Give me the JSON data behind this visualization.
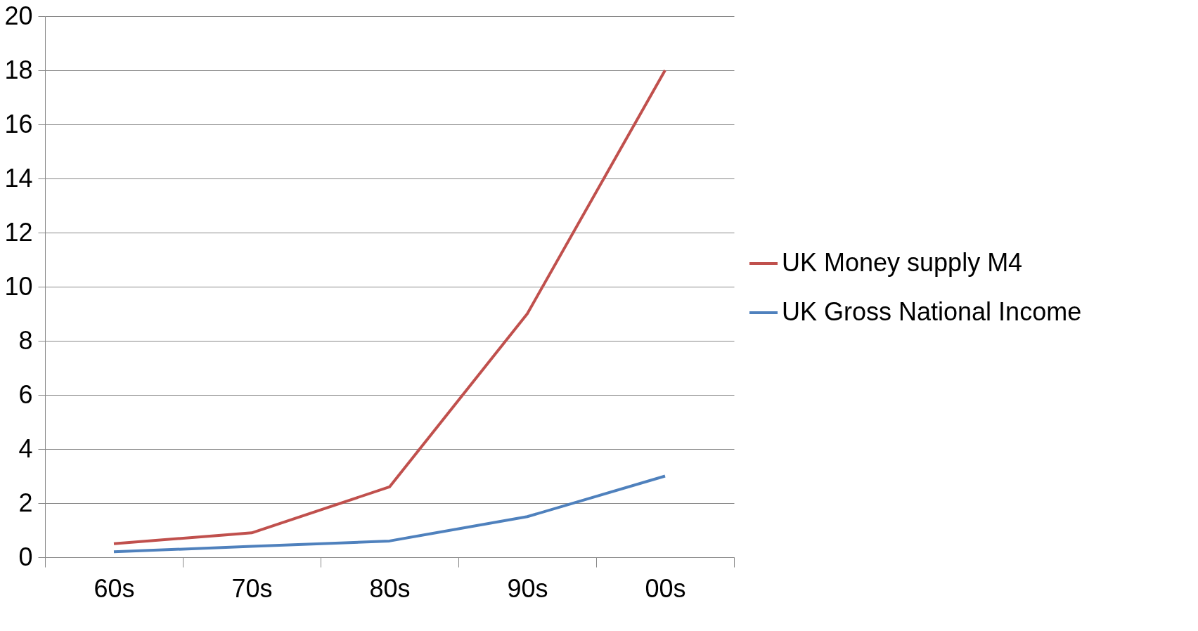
{
  "chart_data": {
    "type": "line",
    "categories": [
      "60s",
      "70s",
      "80s",
      "90s",
      "00s"
    ],
    "series": [
      {
        "name": "UK Money supply M4",
        "color": "#c0504d",
        "values": [
          0.5,
          0.9,
          2.6,
          9,
          18
        ]
      },
      {
        "name": "UK Gross National Income",
        "color": "#4f81bd",
        "values": [
          0.2,
          0.4,
          0.6,
          1.5,
          3.0
        ]
      }
    ],
    "ylim": [
      0,
      20
    ],
    "yticks": [
      0,
      2,
      4,
      6,
      8,
      10,
      12,
      14,
      16,
      18,
      20
    ],
    "grid": "y",
    "legend": "right",
    "marker": "none",
    "line_style": "solid"
  }
}
